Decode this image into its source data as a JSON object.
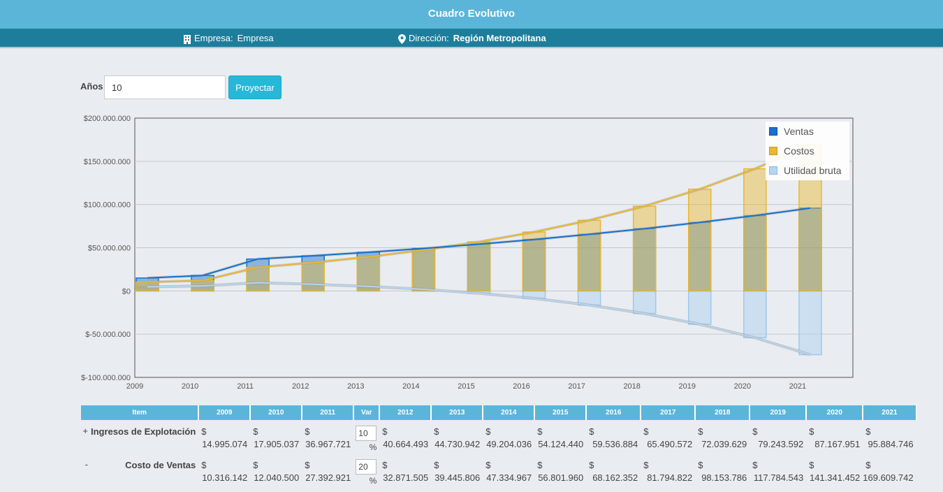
{
  "header": {
    "title": "Cuadro Evolutivo"
  },
  "subheader": {
    "empresa_label": "Empresa:",
    "empresa_value": "Empresa",
    "direccion_label": "Dirección:",
    "direccion_value": "Región Metropolitana"
  },
  "controls": {
    "anos_label": "Años",
    "anos_value": "10",
    "proyectar_label": "Proyectar"
  },
  "colors": {
    "ventas": "#1570cf",
    "costos": "#e8b830",
    "utilidad": "#b5d5f0",
    "header_bg": "#5bb5d9",
    "subheader_bg": "#1d7e9c"
  },
  "chart_data": {
    "type": "bar",
    "categories": [
      "2009",
      "2010",
      "2011",
      "2012",
      "2013",
      "2014",
      "2015",
      "2016",
      "2017",
      "2018",
      "2019",
      "2020",
      "2021"
    ],
    "series": [
      {
        "name": "Ventas",
        "values": [
          14995074,
          17905037,
          36967721,
          40664493,
          44730942,
          49204036,
          54124440,
          59536884,
          65490572,
          72039629,
          79243592,
          87167951,
          95884746
        ]
      },
      {
        "name": "Costos",
        "values": [
          10316142,
          12040500,
          27392921,
          32871505,
          39445806,
          47334967,
          56801960,
          68162352,
          81794822,
          98153786,
          117784543,
          141341452,
          169609742
        ]
      },
      {
        "name": "Utilidad bruta",
        "values": [
          4678932,
          5864537,
          9574800,
          7792988,
          5285136,
          1869069,
          -2677520,
          -8625468,
          -16304250,
          -26114157,
          -38540951,
          -54173501,
          -73724996
        ]
      }
    ],
    "ylim": [
      -100000000,
      200000000
    ],
    "yticks": [
      "$200.000.000",
      "$150.000.000",
      "$100.000.000",
      "$50.000.000",
      "$0",
      "$-50.000.000",
      "$-100.000.000"
    ],
    "legend_position": "top-right",
    "grid": true
  },
  "table": {
    "headers": [
      "Item",
      "2009",
      "2010",
      "2011",
      "Var",
      "2012",
      "2013",
      "2014",
      "2015",
      "2016",
      "2017",
      "2018",
      "2019",
      "2020",
      "2021"
    ],
    "currency": "$",
    "pct": "%",
    "rows": [
      {
        "sign": "+",
        "item": "Ingresos de Explotación",
        "var": "10",
        "before": [
          "14.995.074",
          "17.905.037",
          "36.967.721"
        ],
        "after": [
          "40.664.493",
          "44.730.942",
          "49.204.036",
          "54.124.440",
          "59.536.884",
          "65.490.572",
          "72.039.629",
          "79.243.592",
          "87.167.951",
          "95.884.746"
        ]
      },
      {
        "sign": "-",
        "item": "Costo de Ventas",
        "var": "20",
        "before": [
          "10.316.142",
          "12.040.500",
          "27.392.921"
        ],
        "after": [
          "32.871.505",
          "39.445.806",
          "47.334.967",
          "56.801.960",
          "68.162.352",
          "81.794.822",
          "98.153.786",
          "117.784.543",
          "141.341.452",
          "169.609.742"
        ]
      }
    ]
  }
}
